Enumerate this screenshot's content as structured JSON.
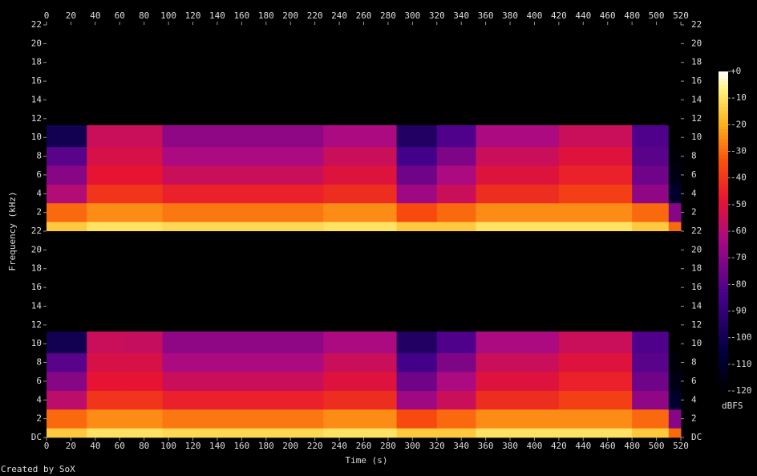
{
  "chart_data": {
    "type": "heatmap",
    "xlabel": "Time (s)",
    "ylabel": "Frequency (kHz)",
    "footer": "Created by SoX",
    "colorbar_label": "dBFS",
    "xlim": [
      0,
      520
    ],
    "xticks": [
      0,
      20,
      40,
      60,
      80,
      100,
      120,
      140,
      160,
      180,
      200,
      220,
      240,
      260,
      280,
      300,
      320,
      340,
      360,
      380,
      400,
      420,
      440,
      460,
      480,
      500,
      520
    ],
    "ylim": [
      0,
      22
    ],
    "zlim": [
      -120,
      0
    ],
    "zticks": [
      {
        "value": 0,
        "label": "+0"
      },
      -10,
      -20,
      -30,
      -40,
      -50,
      -60,
      -70,
      -80,
      -90,
      -100,
      -110,
      -120
    ],
    "x_edges": [
      0,
      33,
      64,
      95,
      227,
      287,
      320,
      352,
      420,
      480,
      510,
      520
    ],
    "y_edges": [
      0,
      1,
      3,
      5,
      7,
      9,
      11.3
    ],
    "panels": [
      {
        "yticks": [
          2,
          4,
          6,
          8,
          10,
          12,
          14,
          16,
          18,
          20,
          22
        ],
        "z": [
          [
            -15,
            -30,
            -60,
            -70,
            -80,
            -100
          ],
          [
            -10,
            -25,
            -40,
            -48,
            -52,
            -55
          ],
          [
            -10,
            -25,
            -40,
            -48,
            -52,
            -55
          ],
          [
            -12,
            -28,
            -45,
            -55,
            -62,
            -68
          ],
          [
            -10,
            -25,
            -42,
            -50,
            -55,
            -62
          ],
          [
            -15,
            -35,
            -65,
            -75,
            -85,
            -95
          ],
          [
            -15,
            -30,
            -55,
            -62,
            -72,
            -82
          ],
          [
            -10,
            -25,
            -42,
            -50,
            -55,
            -62
          ],
          [
            -10,
            -25,
            -38,
            -45,
            -50,
            -55
          ],
          [
            -15,
            -30,
            -68,
            -75,
            -80,
            -82
          ],
          [
            -30,
            -70,
            -110,
            -115,
            -118,
            -120
          ]
        ]
      },
      {
        "yticks": [
          {
            "value": 0,
            "label": "DC"
          },
          2,
          4,
          6,
          8,
          10,
          12,
          14,
          16,
          18,
          20,
          22
        ],
        "z": [
          [
            -15,
            -30,
            -58,
            -70,
            -80,
            -100
          ],
          [
            -10,
            -25,
            -40,
            -48,
            -52,
            -55
          ],
          [
            -10,
            -25,
            -40,
            -48,
            -52,
            -56
          ],
          [
            -12,
            -28,
            -45,
            -55,
            -62,
            -68
          ],
          [
            -10,
            -25,
            -42,
            -50,
            -55,
            -62
          ],
          [
            -15,
            -35,
            -65,
            -75,
            -85,
            -95
          ],
          [
            -15,
            -30,
            -55,
            -62,
            -72,
            -82
          ],
          [
            -10,
            -25,
            -42,
            -50,
            -55,
            -62
          ],
          [
            -10,
            -25,
            -38,
            -45,
            -50,
            -55
          ],
          [
            -15,
            -30,
            -68,
            -75,
            -80,
            -82
          ],
          [
            -30,
            -70,
            -110,
            -115,
            -118,
            -120
          ]
        ]
      }
    ]
  }
}
